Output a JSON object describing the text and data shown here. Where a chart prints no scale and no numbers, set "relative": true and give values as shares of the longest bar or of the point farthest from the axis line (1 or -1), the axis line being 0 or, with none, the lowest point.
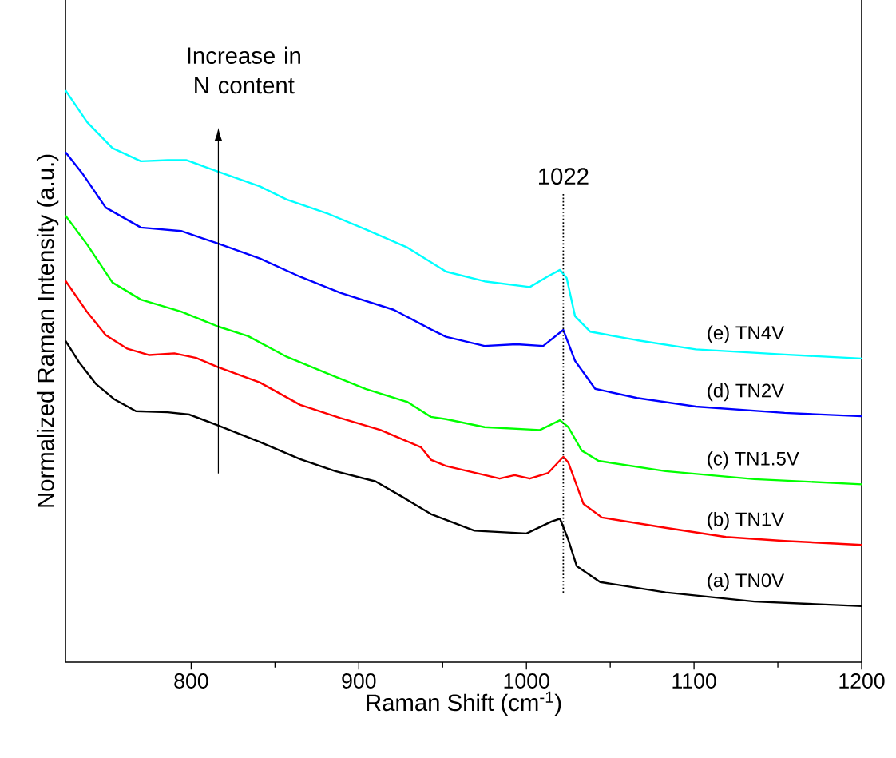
{
  "chart_data": {
    "type": "line",
    "xlabel": "Raman Shift (cm$^{-1}$)",
    "ylabel": "Normalized Raman Intensity (a.u.)",
    "relative": true,
    "xlim": [
      725,
      1200
    ],
    "xticks": [
      800,
      900,
      1000,
      1100,
      1200
    ],
    "annotations": [
      "Increase in N content"
    ],
    "ref_lines": [
      {
        "axis": "x",
        "value": 1022,
        "label": "1022",
        "line_style": "dotted",
        "color": "#000000"
      }
    ],
    "series": [
      {
        "name": "(a) TN0V",
        "color": "#000000",
        "x": [
          725,
          733,
          743,
          754,
          767,
          786,
          799,
          816,
          841,
          865,
          886,
          910,
          926,
          943,
          969,
          1000,
          1015,
          1020,
          1025,
          1030,
          1044,
          1083,
          1136,
          1200
        ],
        "values": [
          0.562,
          0.525,
          0.487,
          0.46,
          0.439,
          0.437,
          0.433,
          0.414,
          0.385,
          0.355,
          0.334,
          0.316,
          0.289,
          0.259,
          0.23,
          0.225,
          0.246,
          0.251,
          0.214,
          0.168,
          0.14,
          0.122,
          0.106,
          0.098
        ]
      },
      {
        "name": "(b) TN1V",
        "color": "#ff0000",
        "x": [
          725,
          738,
          749,
          762,
          775,
          790,
          803,
          816,
          841,
          865,
          889,
          913,
          937,
          943,
          952,
          984,
          993,
          1002,
          1013,
          1022,
          1025,
          1034,
          1045,
          1083,
          1119,
          1154,
          1200
        ],
        "values": [
          0.667,
          0.612,
          0.572,
          0.548,
          0.537,
          0.54,
          0.532,
          0.516,
          0.489,
          0.45,
          0.427,
          0.406,
          0.376,
          0.354,
          0.343,
          0.321,
          0.327,
          0.321,
          0.331,
          0.359,
          0.349,
          0.277,
          0.253,
          0.235,
          0.219,
          0.212,
          0.205
        ]
      },
      {
        "name": "(c) TN1.5V",
        "color": "#00ff00",
        "x": [
          725,
          738,
          753,
          770,
          794,
          816,
          834,
          857,
          881,
          904,
          929,
          943,
          952,
          975,
          1008,
          1020,
          1025,
          1033,
          1043,
          1083,
          1136,
          1200
        ],
        "values": [
          0.781,
          0.73,
          0.664,
          0.634,
          0.613,
          0.587,
          0.57,
          0.534,
          0.505,
          0.478,
          0.455,
          0.429,
          0.425,
          0.411,
          0.406,
          0.423,
          0.411,
          0.37,
          0.352,
          0.334,
          0.32,
          0.311
        ]
      },
      {
        "name": "(d) TN2V",
        "color": "#0000ff",
        "x": [
          725,
          735,
          749,
          770,
          794,
          816,
          841,
          865,
          889,
          921,
          943,
          952,
          975,
          994,
          1010,
          1022,
          1029,
          1041,
          1066,
          1101,
          1154,
          1200
        ],
        "values": [
          0.892,
          0.855,
          0.795,
          0.76,
          0.754,
          0.732,
          0.706,
          0.674,
          0.646,
          0.616,
          0.582,
          0.569,
          0.553,
          0.556,
          0.553,
          0.581,
          0.527,
          0.478,
          0.462,
          0.447,
          0.436,
          0.43
        ]
      },
      {
        "name": "(e) TN4V",
        "color": "#00ffff",
        "x": [
          725,
          738,
          753,
          770,
          786,
          797,
          816,
          841,
          857,
          881,
          904,
          929,
          952,
          975,
          1002,
          1013,
          1020,
          1024,
          1029,
          1038,
          1066,
          1101,
          1154,
          1200
        ],
        "values": [
          1.0,
          0.944,
          0.899,
          0.876,
          0.878,
          0.878,
          0.858,
          0.832,
          0.809,
          0.785,
          0.757,
          0.725,
          0.683,
          0.666,
          0.656,
          0.675,
          0.686,
          0.672,
          0.605,
          0.578,
          0.563,
          0.547,
          0.538,
          0.531
        ]
      }
    ]
  }
}
